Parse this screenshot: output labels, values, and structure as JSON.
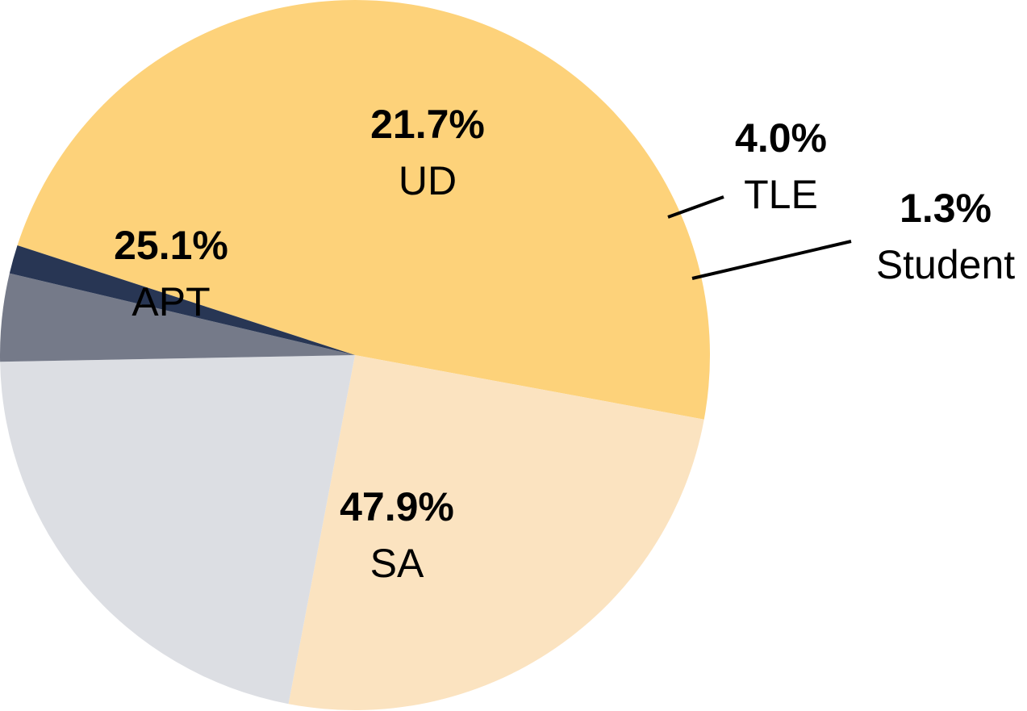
{
  "chart_data": {
    "type": "pie",
    "categories": [
      "SA",
      "APT",
      "UD",
      "TLE",
      "Student"
    ],
    "values": [
      47.9,
      25.1,
      21.7,
      4.0,
      1.3
    ],
    "value_labels": [
      "47.9%",
      "25.1%",
      "21.7%",
      "4.0%",
      "1.3%"
    ],
    "colors": [
      "#fdd27a",
      "#fbe3c0",
      "#dcdee3",
      "#757a89",
      "#283654"
    ],
    "title": "",
    "legend": "none"
  }
}
